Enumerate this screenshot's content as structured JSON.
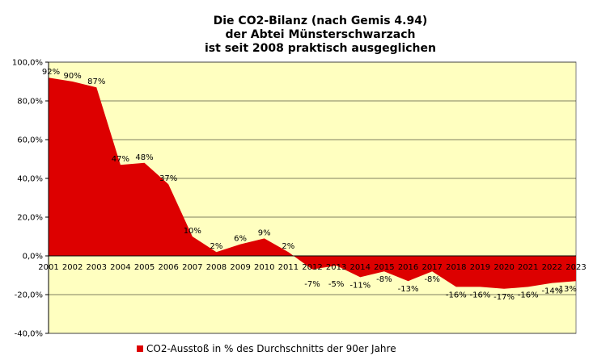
{
  "chart_data": {
    "type": "area",
    "title_lines": [
      "Die CO2-Bilanz (nach Gemis 4.94)",
      "der Abtei Münsterschwarzach",
      "ist seit 2008 praktisch ausgeglichen"
    ],
    "categories": [
      "2001",
      "2002",
      "2003",
      "2004",
      "2005",
      "2006",
      "2007",
      "2008",
      "2009",
      "2010",
      "2011",
      "2012",
      "2013",
      "2014",
      "2015",
      "2016",
      "2017",
      "2018",
      "2019",
      "2020",
      "2021",
      "2022",
      "2023"
    ],
    "series": [
      {
        "name": "CO2-Ausstoß in % des Durchschnitts der 90er Jahre",
        "values": [
          92,
          90,
          87,
          47,
          48,
          37,
          10,
          2,
          6,
          9,
          2,
          -7,
          -5,
          -11,
          -8,
          -13,
          -8,
          -16,
          -16,
          -17,
          -16,
          -14,
          -13
        ],
        "labels": [
          "92%",
          "90%",
          "87%",
          "47%",
          "48%",
          "37%",
          "10%",
          "2%",
          "6%",
          "9%",
          "2%",
          "-7%",
          "-5%",
          "-11%",
          "-8%",
          "-13%",
          "-8%",
          "-16%",
          "-16%",
          "-17%",
          "-16%",
          "-14%",
          "-13%"
        ],
        "color": "#dd0000"
      }
    ],
    "ylim": [
      -40,
      100
    ],
    "y_ticks": [
      100,
      80,
      60,
      40,
      20,
      0,
      -20,
      -40
    ],
    "y_tick_labels": [
      "100,0%",
      "80,0%",
      "60,0%",
      "40,0%",
      "20,0%",
      "0,0%",
      "-20,0%",
      "-40,0%"
    ],
    "plot_background": "#ffffc0",
    "grid": true,
    "legend_position": "bottom"
  }
}
